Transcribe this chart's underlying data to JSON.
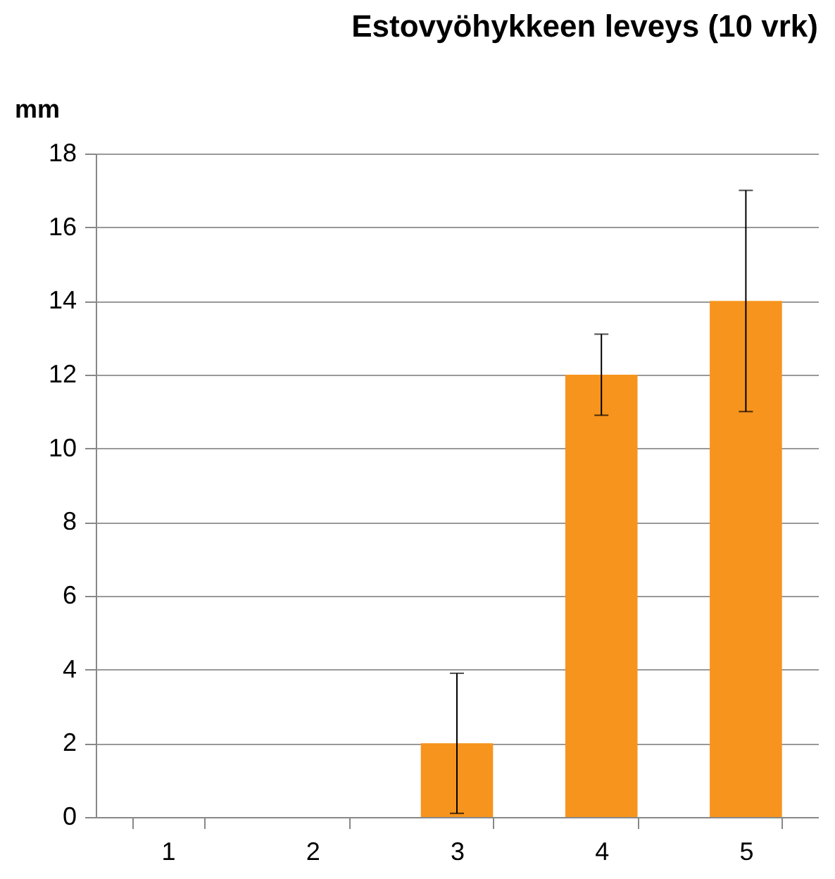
{
  "chart_data": {
    "type": "bar",
    "title": "Estovyöhykkeen leveys (10 vrk)",
    "ylabel": "mm",
    "categories": [
      "1",
      "2",
      "3",
      "4",
      "5"
    ],
    "values": [
      0,
      0,
      2,
      12,
      14
    ],
    "errors": [
      null,
      null,
      1.9,
      1.1,
      3
    ],
    "color": "#f7941d",
    "ylim": [
      0,
      18
    ],
    "yticks": [
      0,
      2,
      4,
      6,
      8,
      10,
      12,
      14,
      16,
      18
    ],
    "grid": "y"
  }
}
